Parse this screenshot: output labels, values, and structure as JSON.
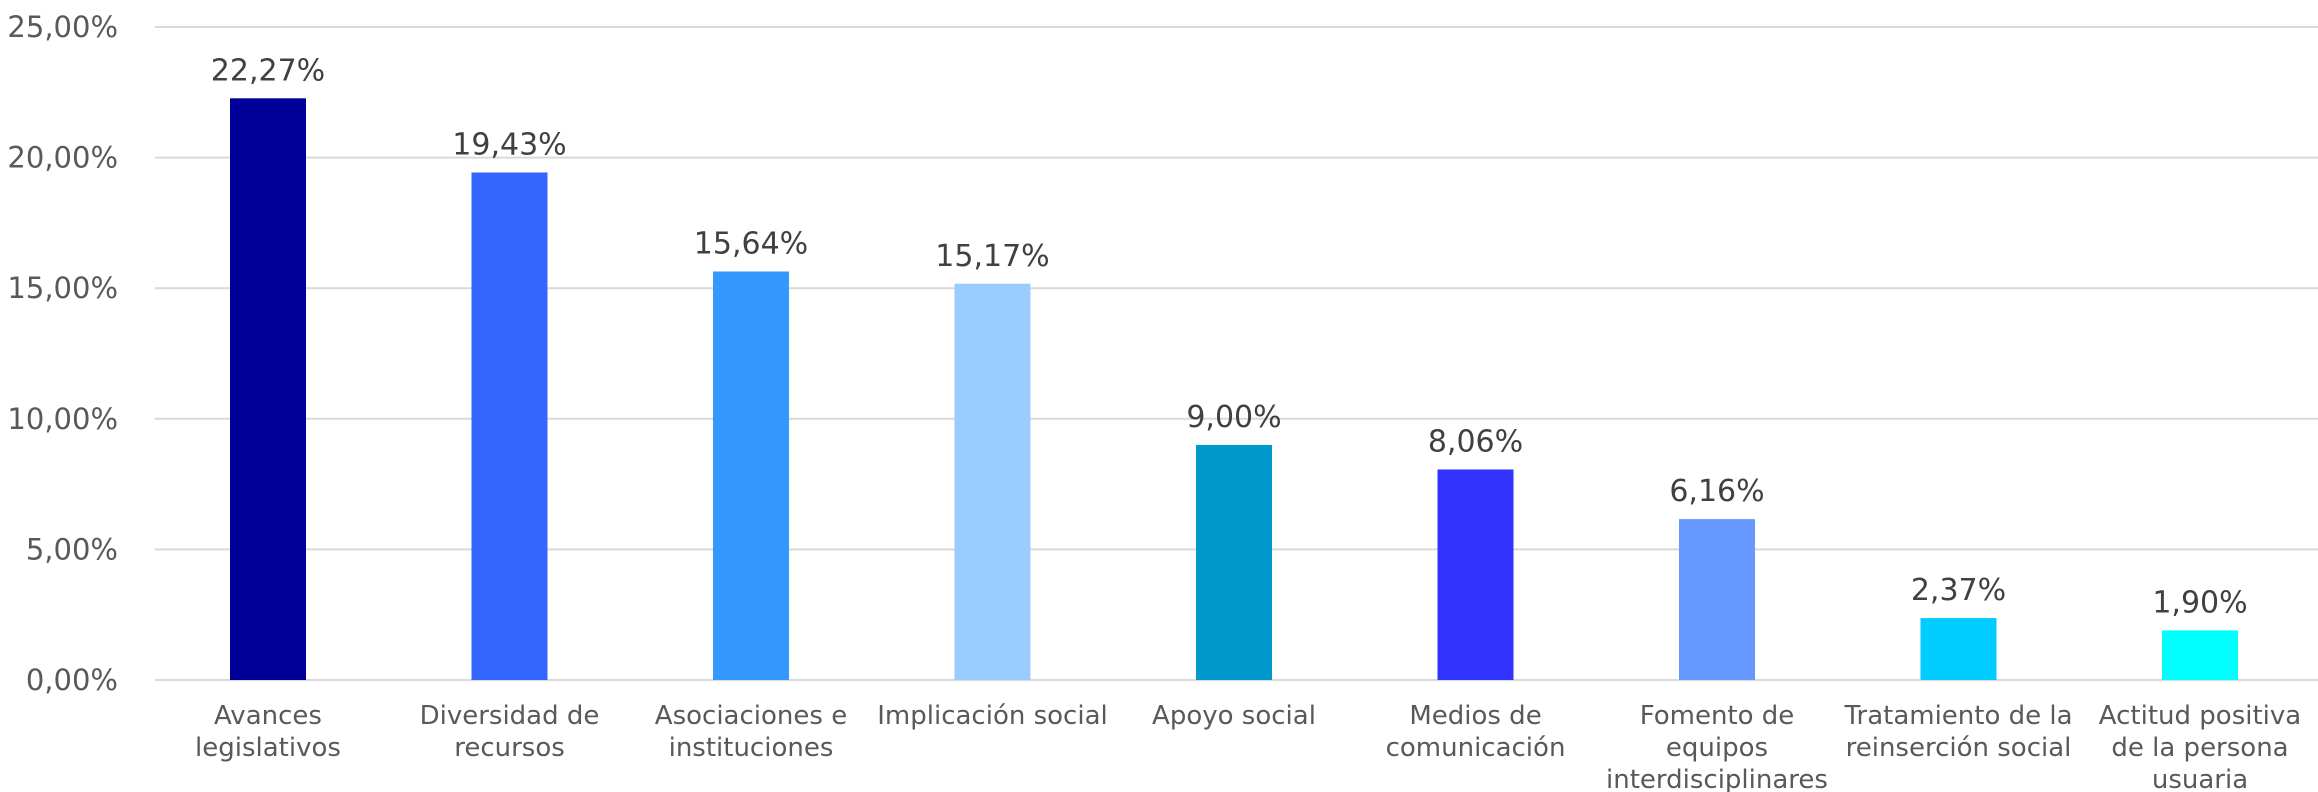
{
  "chart_data": {
    "type": "bar",
    "title": "",
    "xlabel": "",
    "ylabel": "",
    "ylim": [
      0,
      25
    ],
    "y_ticks": [
      "0,00%",
      "5,00%",
      "10,00%",
      "15,00%",
      "20,00%",
      "25,00%"
    ],
    "grid": true,
    "legend": "none",
    "categories": [
      [
        "Avances",
        "legislativos"
      ],
      [
        "Diversidad de",
        "recursos"
      ],
      [
        "Asociaciones e",
        "instituciones"
      ],
      [
        "Implicación social"
      ],
      [
        "Apoyo social"
      ],
      [
        "Medios de",
        "comunicación"
      ],
      [
        "Fomento de",
        "equipos",
        "interdisciplinares"
      ],
      [
        "Tratamiento de la",
        "reinserción social"
      ],
      [
        "Actitud positiva",
        "de la persona",
        "usuaria"
      ]
    ],
    "values": [
      22.27,
      19.43,
      15.64,
      15.17,
      9.0,
      8.06,
      6.16,
      2.37,
      1.9
    ],
    "data_labels": [
      "22,27%",
      "19,43%",
      "15,64%",
      "15,17%",
      "9,00%",
      "8,06%",
      "6,16%",
      "2,37%",
      "1,90%"
    ],
    "colors": [
      "#000099",
      "#3366FF",
      "#3399FF",
      "#99CCFF",
      "#0099CC",
      "#3333FF",
      "#6699FF",
      "#00CCFF",
      "#00FFFF"
    ]
  }
}
